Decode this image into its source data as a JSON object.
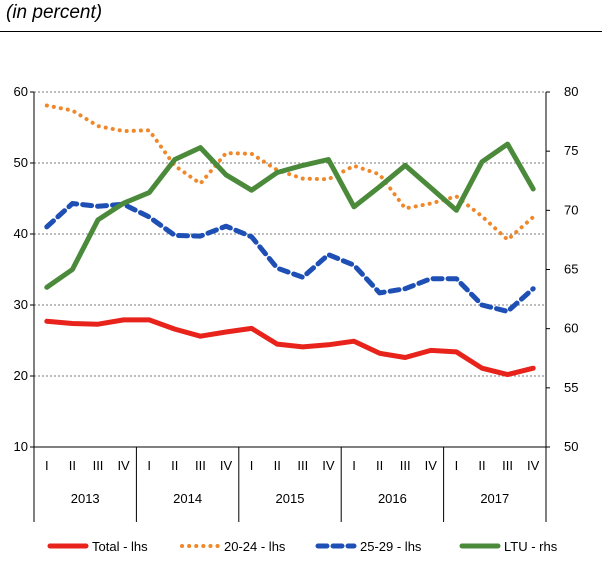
{
  "subtitle": "(in percent)",
  "chart_data": {
    "type": "line",
    "title": "",
    "subtitle": "(in percent)",
    "quarters": [
      "I",
      "II",
      "III",
      "IV",
      "I",
      "II",
      "III",
      "IV",
      "I",
      "II",
      "III",
      "IV",
      "I",
      "II",
      "III",
      "IV",
      "I",
      "II",
      "III",
      "IV"
    ],
    "years": [
      "2013",
      "2014",
      "2015",
      "2016",
      "2017"
    ],
    "y_left": {
      "min": 10,
      "max": 60,
      "ticks": [
        10,
        20,
        30,
        40,
        50,
        60
      ]
    },
    "y_right": {
      "min": 50,
      "max": 80,
      "ticks": [
        50,
        55,
        60,
        65,
        70,
        75,
        80
      ]
    },
    "grid": true,
    "legend_position": "bottom",
    "series": [
      {
        "name": "Total - lhs",
        "axis": "left",
        "color": "#e8231c",
        "style": "solid",
        "values": [
          27.7,
          27.4,
          27.3,
          27.9,
          27.9,
          26.6,
          25.6,
          26.2,
          26.7,
          24.5,
          24.1,
          24.4,
          24.9,
          23.2,
          22.6,
          23.6,
          23.4,
          21.1,
          20.2,
          21.1
        ]
      },
      {
        "name": "20-24 - lhs",
        "axis": "left",
        "color": "#f0882a",
        "style": "dotted",
        "values": [
          58.1,
          57.4,
          55.2,
          54.5,
          54.6,
          49.6,
          47.1,
          51.4,
          51.3,
          49.0,
          47.8,
          47.7,
          49.6,
          48.4,
          43.6,
          44.3,
          45.3,
          42.5,
          39.2,
          42.4
        ]
      },
      {
        "name": "25-29 - lhs",
        "axis": "left",
        "color": "#1e4fb5",
        "style": "dashed",
        "values": [
          41.0,
          44.3,
          43.9,
          44.2,
          42.4,
          39.8,
          39.7,
          41.1,
          39.6,
          35.2,
          33.9,
          37.1,
          35.6,
          31.7,
          32.3,
          33.7,
          33.7,
          30.0,
          29.1,
          32.3
        ]
      },
      {
        "name": "LTU - rhs",
        "axis": "right",
        "color": "#4a8a3a",
        "style": "solid",
        "values": [
          63.5,
          65.0,
          69.2,
          70.6,
          71.5,
          74.3,
          75.3,
          73.0,
          71.7,
          73.2,
          73.8,
          74.3,
          70.3,
          72.0,
          73.8,
          71.9,
          70.0,
          74.1,
          75.6,
          71.8
        ]
      }
    ]
  }
}
